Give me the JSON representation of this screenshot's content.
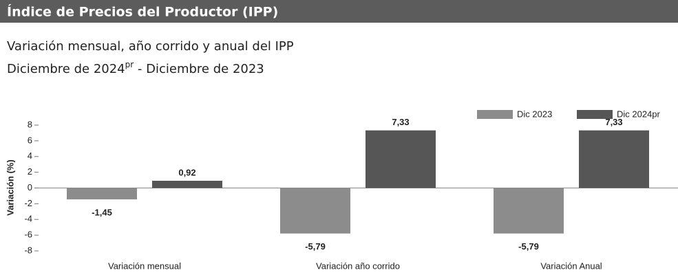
{
  "header": {
    "title": "Índice de Precios del Productor (IPP)"
  },
  "chart_data": {
    "type": "bar",
    "subtitle": "Variación mensual, año corrido y anual del IPP",
    "subtitle_2": [
      "Diciembre de 2024",
      "pr",
      " - Diciembre de 2023"
    ],
    "ylabel": "Variación (%)",
    "categories": [
      "Variación mensual",
      "Variación año corrido",
      "Variación Anual"
    ],
    "series": [
      {
        "name": "Dic 2023",
        "color": "#8c8c8c",
        "values": [
          -1.45,
          -5.79,
          -5.79
        ],
        "value_labels": [
          "-1,45",
          "-5,79",
          "-5,79"
        ]
      },
      {
        "name": "Dic 2024pr",
        "color": "#565656",
        "values": [
          0.92,
          7.33,
          7.33
        ],
        "value_labels": [
          "0,92",
          "7,33",
          "7,33"
        ]
      }
    ],
    "ylim": [
      -8,
      8
    ],
    "yticks": [
      -8,
      -6,
      -4,
      -2,
      0,
      2,
      4,
      6,
      8
    ],
    "legend": "top-right"
  }
}
